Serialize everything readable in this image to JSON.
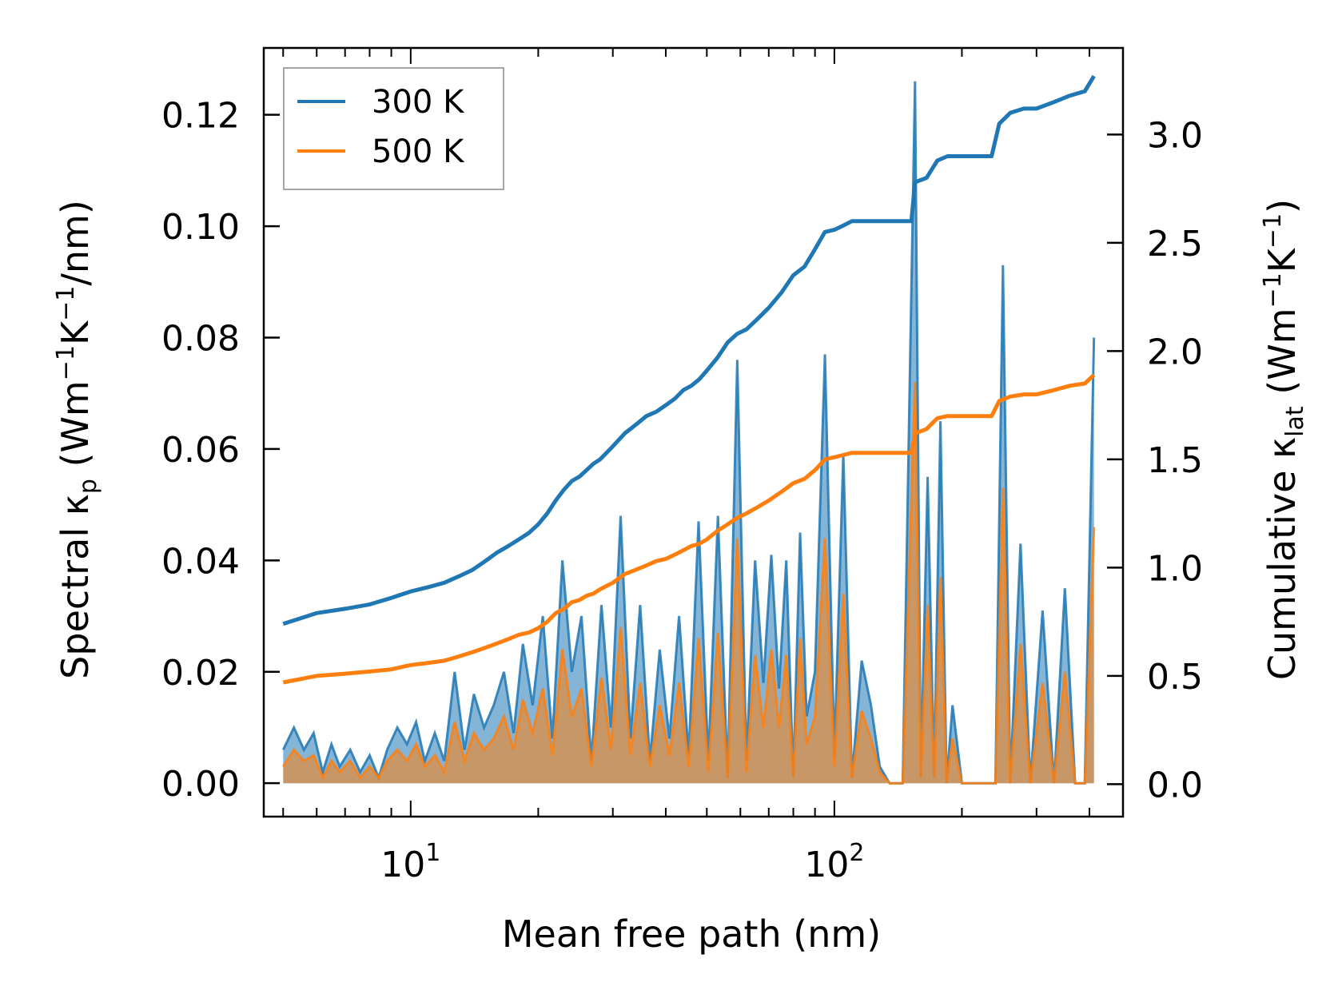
{
  "chart_data": {
    "type": "line",
    "title": "",
    "xlabel": "Mean free path (nm)",
    "ylabel": {
      "text": "Spectral κ",
      "sub": "p",
      "unit_open": " (Wm",
      "sup1": "−1",
      "k": "K",
      "sup2": "−1",
      "unit_close": "/nm)"
    },
    "y2label": {
      "text": "Cumulative κ",
      "sub": "lat",
      "unit_open": " (Wm",
      "sup1": "−1",
      "k": "K",
      "sup2": "−1",
      "unit_close": ")"
    },
    "xscale": "log",
    "xlim": [
      4.5,
      480
    ],
    "ylim": [
      -0.006,
      0.132
    ],
    "y2lim": [
      -0.15,
      3.4
    ],
    "yticks": [
      0.0,
      0.02,
      0.04,
      0.06,
      0.08,
      0.1,
      0.12
    ],
    "ytick_labels": [
      "0.00",
      "0.02",
      "0.04",
      "0.06",
      "0.08",
      "0.10",
      "0.12"
    ],
    "y2ticks": [
      0.0,
      0.5,
      1.0,
      1.5,
      2.0,
      2.5,
      3.0
    ],
    "y2tick_labels": [
      "0.0",
      "0.5",
      "1.0",
      "1.5",
      "2.0",
      "2.5",
      "3.0"
    ],
    "xticks_major": [
      10,
      100
    ],
    "xtick_labels": [
      {
        "base": "10",
        "exp": "1"
      },
      {
        "base": "10",
        "exp": "2"
      }
    ],
    "legend": {
      "location": "top-left",
      "entries": [
        {
          "label": "300 K",
          "color": "#1f77b4"
        },
        {
          "label": "500 K",
          "color": "#ff7f0e"
        }
      ]
    },
    "spectral_series": [
      {
        "name": "300 K",
        "color": "#1f77b4",
        "x": [
          5.0,
          5.3,
          5.6,
          5.9,
          6.2,
          6.5,
          6.8,
          7.2,
          7.6,
          8.0,
          8.4,
          8.8,
          9.3,
          9.8,
          10.3,
          10.8,
          11.4,
          12.0,
          12.7,
          13.4,
          14.1,
          14.9,
          15.7,
          16.6,
          17.5,
          18.4,
          19.4,
          20.5,
          21.6,
          22.8,
          24.0,
          25.3,
          26.7,
          28.2,
          29.7,
          31.3,
          33.0,
          34.8,
          36.7,
          38.7,
          40.8,
          43.0,
          45.3,
          47.8,
          50.4,
          53.1,
          56.0,
          59.0,
          62.0,
          65.0,
          68.0,
          71.0,
          74.0,
          77.0,
          80.0,
          83.0,
          86.0,
          90.0,
          95.0,
          100.0,
          105.0,
          110.0,
          116.0,
          122.0,
          128.0,
          135.0,
          145.0,
          155.0,
          160.0,
          166.0,
          172.0,
          178.0,
          184.0,
          190.0,
          200.0,
          215.0,
          230.0,
          240.0,
          250.0,
          260.0,
          275.0,
          290.0,
          310.0,
          330.0,
          350.0,
          370.0,
          390.0,
          410.0
        ],
        "values": [
          0.006,
          0.01,
          0.006,
          0.009,
          0.002,
          0.007,
          0.003,
          0.006,
          0.002,
          0.005,
          0.001,
          0.006,
          0.01,
          0.007,
          0.011,
          0.004,
          0.009,
          0.004,
          0.02,
          0.006,
          0.016,
          0.01,
          0.014,
          0.02,
          0.009,
          0.025,
          0.014,
          0.03,
          0.008,
          0.04,
          0.02,
          0.03,
          0.004,
          0.032,
          0.01,
          0.048,
          0.008,
          0.032,
          0.004,
          0.024,
          0.008,
          0.03,
          0.005,
          0.047,
          0.004,
          0.048,
          0.001,
          0.076,
          0.004,
          0.04,
          0.018,
          0.041,
          0.017,
          0.04,
          0.001,
          0.045,
          0.012,
          0.02,
          0.077,
          0.005,
          0.059,
          0.001,
          0.022,
          0.014,
          0.003,
          0.0,
          0.0,
          0.126,
          0.001,
          0.055,
          0.001,
          0.065,
          0.0,
          0.014,
          0.0,
          0.0,
          0.0,
          0.0,
          0.093,
          0.0,
          0.043,
          0.0,
          0.031,
          0.0,
          0.035,
          0.0,
          0.0,
          0.08
        ]
      },
      {
        "name": "500 K",
        "color": "#ff7f0e",
        "x": [
          5.0,
          5.3,
          5.6,
          5.9,
          6.2,
          6.5,
          6.8,
          7.2,
          7.6,
          8.0,
          8.4,
          8.8,
          9.3,
          9.8,
          10.3,
          10.8,
          11.4,
          12.0,
          12.7,
          13.4,
          14.1,
          14.9,
          15.7,
          16.6,
          17.5,
          18.4,
          19.4,
          20.5,
          21.6,
          22.8,
          24.0,
          25.3,
          26.7,
          28.2,
          29.7,
          31.3,
          33.0,
          34.8,
          36.7,
          38.7,
          40.8,
          43.0,
          45.3,
          47.8,
          50.4,
          53.1,
          56.0,
          59.0,
          62.0,
          65.0,
          68.0,
          71.0,
          74.0,
          77.0,
          80.0,
          83.0,
          86.0,
          90.0,
          95.0,
          100.0,
          105.0,
          110.0,
          116.0,
          122.0,
          128.0,
          135.0,
          145.0,
          155.0,
          160.0,
          166.0,
          172.0,
          178.0,
          184.0,
          190.0,
          200.0,
          215.0,
          230.0,
          240.0,
          250.0,
          260.0,
          275.0,
          290.0,
          310.0,
          330.0,
          350.0,
          370.0,
          390.0,
          410.0
        ],
        "values": [
          0.003,
          0.006,
          0.004,
          0.005,
          0.001,
          0.004,
          0.002,
          0.004,
          0.001,
          0.003,
          0.001,
          0.004,
          0.006,
          0.004,
          0.007,
          0.003,
          0.005,
          0.002,
          0.011,
          0.004,
          0.009,
          0.006,
          0.008,
          0.012,
          0.006,
          0.015,
          0.009,
          0.017,
          0.005,
          0.024,
          0.012,
          0.017,
          0.003,
          0.019,
          0.006,
          0.028,
          0.005,
          0.018,
          0.003,
          0.014,
          0.005,
          0.018,
          0.003,
          0.026,
          0.002,
          0.027,
          0.001,
          0.044,
          0.002,
          0.023,
          0.01,
          0.024,
          0.01,
          0.023,
          0.001,
          0.026,
          0.007,
          0.012,
          0.044,
          0.003,
          0.034,
          0.001,
          0.013,
          0.008,
          0.002,
          0.0,
          0.0,
          0.072,
          0.001,
          0.032,
          0.001,
          0.037,
          0.0,
          0.008,
          0.0,
          0.0,
          0.0,
          0.0,
          0.053,
          0.0,
          0.025,
          0.0,
          0.018,
          0.0,
          0.02,
          0.0,
          0.0,
          0.046
        ]
      }
    ],
    "cumulative_series": [
      {
        "name": "300 K",
        "color": "#1f77b4",
        "x": [
          5.0,
          6.0,
          7.0,
          8.0,
          9.0,
          10.0,
          11.0,
          12.0,
          13.0,
          14.0,
          15.0,
          16.0,
          17.0,
          18.0,
          19.0,
          20.0,
          21.0,
          22.0,
          23.0,
          24.0,
          25.0,
          26.0,
          27.0,
          28.0,
          30.0,
          32.0,
          34.0,
          36.0,
          38.0,
          40.0,
          42.0,
          44.0,
          46.0,
          48.0,
          50.0,
          53.0,
          56.0,
          59.0,
          62.0,
          66.0,
          70.0,
          75.0,
          80.0,
          85.0,
          90.0,
          95.0,
          100.0,
          105.0,
          110.0,
          120.0,
          130.0,
          140.0,
          152.0,
          155.0,
          165.0,
          175.0,
          185.0,
          200.0,
          220.0,
          235.0,
          245.0,
          260.0,
          280.0,
          300.0,
          330.0,
          360.0,
          390.0,
          410.0
        ],
        "values": [
          0.74,
          0.79,
          0.81,
          0.83,
          0.86,
          0.89,
          0.91,
          0.93,
          0.96,
          0.99,
          1.03,
          1.07,
          1.1,
          1.13,
          1.16,
          1.2,
          1.25,
          1.31,
          1.36,
          1.4,
          1.42,
          1.45,
          1.48,
          1.5,
          1.56,
          1.62,
          1.66,
          1.7,
          1.72,
          1.75,
          1.78,
          1.82,
          1.84,
          1.87,
          1.91,
          1.97,
          2.04,
          2.08,
          2.1,
          2.15,
          2.2,
          2.27,
          2.35,
          2.39,
          2.47,
          2.55,
          2.56,
          2.58,
          2.6,
          2.6,
          2.6,
          2.6,
          2.6,
          2.78,
          2.8,
          2.88,
          2.9,
          2.9,
          2.9,
          2.9,
          3.05,
          3.1,
          3.12,
          3.12,
          3.15,
          3.18,
          3.2,
          3.27
        ]
      },
      {
        "name": "500 K",
        "color": "#ff7f0e",
        "x": [
          5.0,
          6.0,
          7.0,
          8.0,
          9.0,
          10.0,
          11.0,
          12.0,
          13.0,
          14.0,
          15.0,
          16.0,
          17.0,
          18.0,
          19.0,
          20.0,
          21.0,
          22.0,
          23.0,
          24.0,
          25.0,
          26.0,
          27.0,
          28.0,
          30.0,
          32.0,
          34.0,
          36.0,
          38.0,
          40.0,
          42.0,
          44.0,
          46.0,
          48.0,
          50.0,
          53.0,
          56.0,
          59.0,
          62.0,
          66.0,
          70.0,
          75.0,
          80.0,
          85.0,
          90.0,
          95.0,
          100.0,
          105.0,
          110.0,
          120.0,
          130.0,
          140.0,
          152.0,
          155.0,
          165.0,
          175.0,
          185.0,
          200.0,
          220.0,
          235.0,
          245.0,
          260.0,
          280.0,
          300.0,
          330.0,
          360.0,
          390.0,
          410.0
        ],
        "values": [
          0.47,
          0.5,
          0.51,
          0.52,
          0.53,
          0.55,
          0.56,
          0.57,
          0.59,
          0.61,
          0.63,
          0.65,
          0.67,
          0.69,
          0.7,
          0.72,
          0.75,
          0.79,
          0.81,
          0.84,
          0.85,
          0.87,
          0.88,
          0.9,
          0.93,
          0.97,
          0.99,
          1.01,
          1.03,
          1.04,
          1.06,
          1.08,
          1.1,
          1.11,
          1.13,
          1.17,
          1.2,
          1.23,
          1.25,
          1.28,
          1.31,
          1.35,
          1.39,
          1.41,
          1.45,
          1.5,
          1.51,
          1.52,
          1.53,
          1.53,
          1.53,
          1.53,
          1.53,
          1.62,
          1.64,
          1.69,
          1.7,
          1.7,
          1.7,
          1.7,
          1.77,
          1.79,
          1.8,
          1.8,
          1.82,
          1.84,
          1.85,
          1.89
        ]
      }
    ]
  }
}
